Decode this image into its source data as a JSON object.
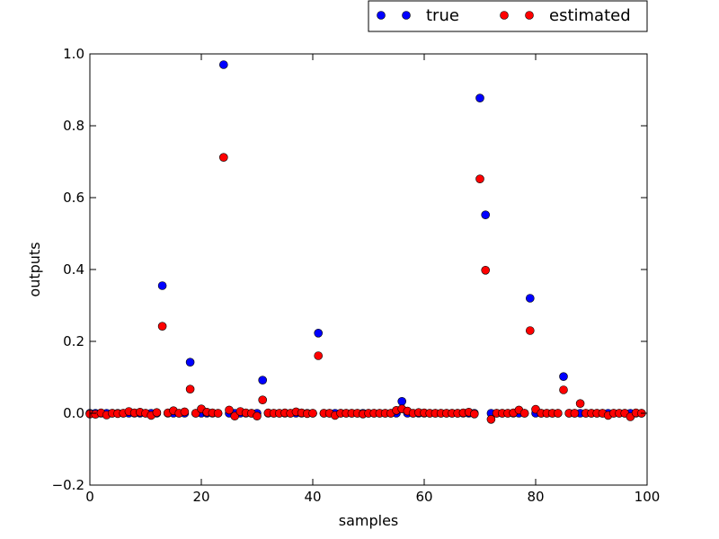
{
  "chart_data": {
    "type": "scatter",
    "xlabel": "samples",
    "ylabel": "outputs",
    "xlim": [
      0,
      100
    ],
    "ylim": [
      -0.2,
      1.0
    ],
    "xticks": [
      0,
      20,
      40,
      60,
      80,
      100
    ],
    "xtick_labels": [
      "0",
      "20",
      "40",
      "60",
      "80",
      "100"
    ],
    "yticks": [
      -0.2,
      0.0,
      0.2,
      0.4,
      0.6,
      0.8,
      1.0
    ],
    "ytick_labels": [
      "−0.2",
      "0.0",
      "0.2",
      "0.4",
      "0.6",
      "0.8",
      "1.0"
    ],
    "grid": false,
    "legend": {
      "placement": "above top-right",
      "columns": 2
    },
    "x": [
      0,
      1,
      2,
      3,
      4,
      5,
      6,
      7,
      8,
      9,
      10,
      11,
      12,
      13,
      14,
      15,
      16,
      17,
      18,
      19,
      20,
      21,
      22,
      23,
      24,
      25,
      26,
      27,
      28,
      29,
      30,
      31,
      32,
      33,
      34,
      35,
      36,
      37,
      38,
      39,
      40,
      41,
      42,
      43,
      44,
      45,
      46,
      47,
      48,
      49,
      50,
      51,
      52,
      53,
      54,
      55,
      56,
      57,
      58,
      59,
      60,
      61,
      62,
      63,
      64,
      65,
      66,
      67,
      68,
      69,
      70,
      71,
      72,
      73,
      74,
      75,
      76,
      77,
      78,
      79,
      80,
      81,
      82,
      83,
      84,
      85,
      86,
      87,
      88,
      89,
      90,
      91,
      92,
      93,
      94,
      95,
      96,
      97,
      98,
      99
    ],
    "series": [
      {
        "name": "true",
        "color": "#0000ff",
        "values": [
          0,
          0,
          0,
          0,
          0,
          0,
          0,
          0,
          0,
          0,
          0,
          0,
          0,
          0.355,
          0,
          0,
          0,
          0,
          0.142,
          0,
          0,
          0,
          0,
          0,
          0.97,
          0,
          0,
          0,
          0,
          0,
          0,
          0.092,
          0,
          0,
          0,
          0,
          0,
          0,
          0,
          0,
          0,
          0.223,
          0,
          0,
          0,
          0,
          0,
          0,
          0,
          0,
          0,
          0,
          0,
          0,
          0,
          0,
          0.033,
          0,
          0,
          0,
          0,
          0,
          0,
          0,
          0,
          0,
          0,
          0,
          0,
          0,
          0.877,
          0.552,
          0,
          0,
          0,
          0,
          0,
          0,
          0,
          0.32,
          0,
          0,
          0,
          0,
          0,
          0.102,
          0,
          0,
          0,
          0,
          0,
          0,
          0,
          0,
          0,
          0,
          0,
          0,
          0,
          0
        ]
      },
      {
        "name": "estimated",
        "color": "#ff0000",
        "values": [
          -0.002,
          -0.003,
          0.001,
          -0.005,
          0.0,
          -0.001,
          0.0,
          0.005,
          0.001,
          0.003,
          0.0,
          -0.006,
          0.002,
          0.242,
          0.001,
          0.007,
          0.0,
          0.004,
          0.067,
          0.0,
          0.012,
          0.003,
          0.001,
          0.0,
          0.712,
          0.009,
          -0.008,
          0.005,
          0.001,
          0.0,
          -0.008,
          0.037,
          0.001,
          0.0,
          0.0,
          0.001,
          0.0,
          0.004,
          0.001,
          -0.001,
          0.0,
          0.16,
          0.0,
          0.0,
          -0.006,
          0.0,
          0.0,
          0.0,
          0.0,
          -0.002,
          0.0,
          0.0,
          0.0,
          0.0,
          0.0,
          0.008,
          0.012,
          0.006,
          0.0,
          0.002,
          0.001,
          0.0,
          0.0,
          0.0,
          0.0,
          0.0,
          0.0,
          0.001,
          0.003,
          -0.002,
          0.652,
          0.398,
          -0.017,
          0.0,
          0.0,
          0.0,
          0.001,
          0.009,
          0.0,
          0.23,
          0.011,
          0.0,
          0.0,
          0.0,
          0.0,
          0.065,
          0.0,
          0.0,
          0.027,
          0.0,
          0.0,
          0.0,
          0.0,
          -0.006,
          0.0,
          0.0,
          0.0,
          -0.01,
          0.001,
          0.0
        ]
      }
    ]
  }
}
